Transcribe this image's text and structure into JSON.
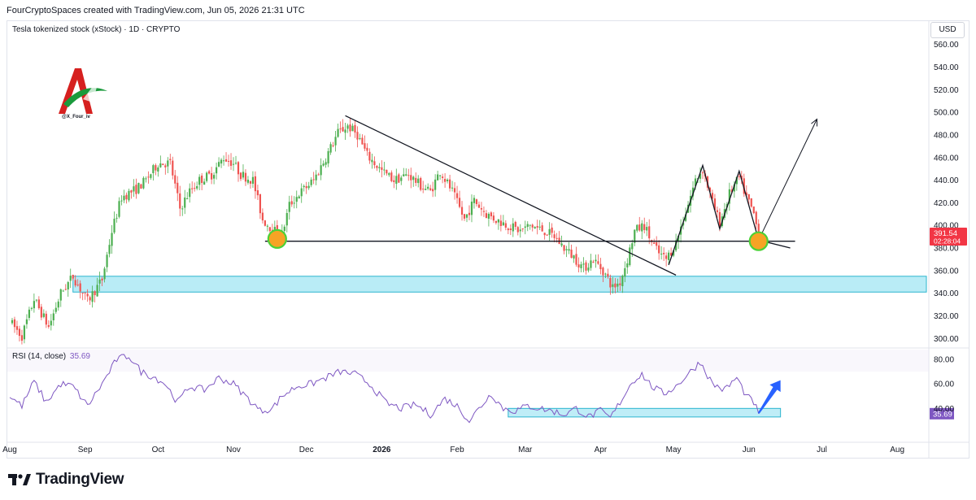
{
  "header": {
    "credit": "FourCryptoSpaces created with TradingView.com, Jun 05, 2026 21:31 UTC",
    "symbol_title": "Tesla tokenized stock (xStock) · 1D · CRYPTO",
    "currency": "USD"
  },
  "logo": {
    "handle": "@X_Four_iv"
  },
  "brand": {
    "name": "TradingView"
  },
  "colors": {
    "up": "#26a69a",
    "up_green": "#4caf50",
    "down": "#ef5350",
    "zone_fill": "#7fdcef",
    "zone_stroke": "#2cb5cf",
    "rsi_line": "#7e57c2",
    "arrow_blue": "#2962ff",
    "circle_orange": "#f7a325",
    "circle_ring": "#4cd137",
    "price_label": "#f23645"
  },
  "chart_data": [
    {
      "type": "candlestick",
      "title": "Tesla tokenized stock (xStock) · 1D · CRYPTO",
      "y_axis": {
        "currency": "USD",
        "ticks": [
          300,
          320,
          340,
          360,
          380,
          400,
          420,
          440,
          460,
          480,
          500,
          520,
          540,
          560
        ],
        "tick_labels": [
          "300.00",
          "320.00",
          "340.00",
          "360.00",
          "380.00",
          "400.00",
          "420.00",
          "440.00",
          "460.00",
          "480.00",
          "500.00",
          "520.00",
          "540.00",
          "560.00"
        ],
        "ylim": [
          293,
          567
        ]
      },
      "x_axis": {
        "ticks": [
          "Aug",
          "Sep",
          "Oct",
          "Nov",
          "Dec",
          "2026",
          "Feb",
          "Mar",
          "Apr",
          "May",
          "Jun",
          "Jul",
          "Aug"
        ],
        "bold_ticks": [
          "2026"
        ]
      },
      "price_anchors": [
        {
          "date": "2025-08-01",
          "price": 315
        },
        {
          "date": "2025-08-06",
          "price": 302
        },
        {
          "date": "2025-08-11",
          "price": 335
        },
        {
          "date": "2025-08-17",
          "price": 310
        },
        {
          "date": "2025-08-22",
          "price": 340
        },
        {
          "date": "2025-08-27",
          "price": 355
        },
        {
          "date": "2025-09-02",
          "price": 333
        },
        {
          "date": "2025-09-08",
          "price": 352
        },
        {
          "date": "2025-09-12",
          "price": 395
        },
        {
          "date": "2025-09-16",
          "price": 425
        },
        {
          "date": "2025-09-22",
          "price": 432
        },
        {
          "date": "2025-09-26",
          "price": 440
        },
        {
          "date": "2025-10-01",
          "price": 455
        },
        {
          "date": "2025-10-06",
          "price": 455
        },
        {
          "date": "2025-10-10",
          "price": 415
        },
        {
          "date": "2025-10-14",
          "price": 430
        },
        {
          "date": "2025-10-18",
          "price": 440
        },
        {
          "date": "2025-10-23",
          "price": 445
        },
        {
          "date": "2025-10-28",
          "price": 460
        },
        {
          "date": "2025-11-01",
          "price": 455
        },
        {
          "date": "2025-11-04",
          "price": 445
        },
        {
          "date": "2025-11-09",
          "price": 440
        },
        {
          "date": "2025-11-13",
          "price": 405
        },
        {
          "date": "2025-11-18",
          "price": 395
        },
        {
          "date": "2025-11-21",
          "price": 392
        },
        {
          "date": "2025-11-24",
          "price": 418
        },
        {
          "date": "2025-11-28",
          "price": 428
        },
        {
          "date": "2025-12-04",
          "price": 440
        },
        {
          "date": "2025-12-09",
          "price": 460
        },
        {
          "date": "2025-12-14",
          "price": 482
        },
        {
          "date": "2025-12-18",
          "price": 488
        },
        {
          "date": "2025-12-22",
          "price": 480
        },
        {
          "date": "2025-12-26",
          "price": 462
        },
        {
          "date": "2026-01-01",
          "price": 448
        },
        {
          "date": "2026-01-06",
          "price": 440
        },
        {
          "date": "2026-01-12",
          "price": 445
        },
        {
          "date": "2026-01-17",
          "price": 435
        },
        {
          "date": "2026-01-21",
          "price": 430
        },
        {
          "date": "2026-01-25",
          "price": 448
        },
        {
          "date": "2026-01-30",
          "price": 430
        },
        {
          "date": "2026-02-04",
          "price": 405
        },
        {
          "date": "2026-02-08",
          "price": 422
        },
        {
          "date": "2026-02-13",
          "price": 410
        },
        {
          "date": "2026-02-17",
          "price": 405
        },
        {
          "date": "2026-02-22",
          "price": 400
        },
        {
          "date": "2026-02-27",
          "price": 395
        },
        {
          "date": "2026-03-03",
          "price": 400
        },
        {
          "date": "2026-03-09",
          "price": 395
        },
        {
          "date": "2026-03-13",
          "price": 390
        },
        {
          "date": "2026-03-17",
          "price": 380
        },
        {
          "date": "2026-03-21",
          "price": 372
        },
        {
          "date": "2026-03-25",
          "price": 362
        },
        {
          "date": "2026-03-29",
          "price": 370
        },
        {
          "date": "2026-04-02",
          "price": 360
        },
        {
          "date": "2026-04-06",
          "price": 345
        },
        {
          "date": "2026-04-09",
          "price": 350
        },
        {
          "date": "2026-04-12",
          "price": 370
        },
        {
          "date": "2026-04-15",
          "price": 395
        },
        {
          "date": "2026-04-19",
          "price": 400
        },
        {
          "date": "2026-04-22",
          "price": 385
        },
        {
          "date": "2026-04-25",
          "price": 375
        },
        {
          "date": "2026-04-28",
          "price": 370
        },
        {
          "date": "2026-05-02",
          "price": 385
        },
        {
          "date": "2026-05-06",
          "price": 412
        },
        {
          "date": "2026-05-10",
          "price": 440
        },
        {
          "date": "2026-05-13",
          "price": 450
        },
        {
          "date": "2026-05-17",
          "price": 420
        },
        {
          "date": "2026-05-20",
          "price": 402
        },
        {
          "date": "2026-05-24",
          "price": 428
        },
        {
          "date": "2026-05-28",
          "price": 442
        },
        {
          "date": "2026-05-31",
          "price": 425
        },
        {
          "date": "2026-06-03",
          "price": 410
        },
        {
          "date": "2026-06-05",
          "price": 391.54
        }
      ],
      "last_price": {
        "value": "391.54",
        "countdown": "02:28:04"
      },
      "annotations": {
        "horizontal_support": {
          "from_date": "2025-11-14",
          "to_date": "2026-06-20",
          "price": 386
        },
        "descending_trendline": {
          "from": {
            "date": "2025-12-17",
            "price": 497
          },
          "to": {
            "date": "2026-05-02",
            "price": 356
          }
        },
        "demand_zone": {
          "from_date": "2025-08-27",
          "to_date": "2026-08-13",
          "low": 341,
          "high": 355
        },
        "zigzag": [
          {
            "date": "2026-04-29",
            "price": 365
          },
          {
            "date": "2026-05-13",
            "price": 453
          },
          {
            "date": "2026-05-20",
            "price": 397
          },
          {
            "date": "2026-05-28",
            "price": 448
          },
          {
            "date": "2026-06-05",
            "price": 387
          },
          {
            "date": "2026-06-18",
            "price": 380
          }
        ],
        "projection_arrow": {
          "from": {
            "date": "2026-06-05",
            "price": 387
          },
          "to": {
            "date": "2026-06-29",
            "price": 494
          }
        },
        "circles": [
          {
            "date": "2025-11-19",
            "price": 388
          },
          {
            "date": "2026-06-05",
            "price": 386
          }
        ]
      }
    },
    {
      "type": "line",
      "title": "RSI (14, close)",
      "current_value": "35.69",
      "y_axis": {
        "ticks": [
          40,
          60,
          80
        ],
        "tick_labels": [
          "40.00",
          "60.00",
          "80.00"
        ],
        "ylim": [
          15,
          88
        ]
      },
      "series": [
        {
          "values": [
            {
              "date": "2025-08-01",
              "rsi": 50
            },
            {
              "date": "2025-08-06",
              "rsi": 42
            },
            {
              "date": "2025-08-11",
              "rsi": 62
            },
            {
              "date": "2025-08-16",
              "rsi": 45
            },
            {
              "date": "2025-08-22",
              "rsi": 60
            },
            {
              "date": "2025-08-27",
              "rsi": 58
            },
            {
              "date": "2025-09-02",
              "rsi": 42
            },
            {
              "date": "2025-09-08",
              "rsi": 60
            },
            {
              "date": "2025-09-14",
              "rsi": 80
            },
            {
              "date": "2025-09-19",
              "rsi": 83
            },
            {
              "date": "2025-09-24",
              "rsi": 70
            },
            {
              "date": "2025-09-30",
              "rsi": 65
            },
            {
              "date": "2025-10-04",
              "rsi": 60
            },
            {
              "date": "2025-10-09",
              "rsi": 45
            },
            {
              "date": "2025-10-14",
              "rsi": 58
            },
            {
              "date": "2025-10-20",
              "rsi": 55
            },
            {
              "date": "2025-10-26",
              "rsi": 65
            },
            {
              "date": "2025-11-01",
              "rsi": 60
            },
            {
              "date": "2025-11-06",
              "rsi": 50
            },
            {
              "date": "2025-11-12",
              "rsi": 38
            },
            {
              "date": "2025-11-17",
              "rsi": 40
            },
            {
              "date": "2025-11-21",
              "rsi": 50
            },
            {
              "date": "2025-11-27",
              "rsi": 58
            },
            {
              "date": "2025-12-03",
              "rsi": 60
            },
            {
              "date": "2025-12-09",
              "rsi": 65
            },
            {
              "date": "2025-12-15",
              "rsi": 70
            },
            {
              "date": "2025-12-21",
              "rsi": 68
            },
            {
              "date": "2025-12-27",
              "rsi": 60
            },
            {
              "date": "2026-01-03",
              "rsi": 44
            },
            {
              "date": "2026-01-09",
              "rsi": 40
            },
            {
              "date": "2026-01-15",
              "rsi": 43
            },
            {
              "date": "2026-01-21",
              "rsi": 35
            },
            {
              "date": "2026-01-27",
              "rsi": 48
            },
            {
              "date": "2026-02-01",
              "rsi": 42
            },
            {
              "date": "2026-02-06",
              "rsi": 30
            },
            {
              "date": "2026-02-10",
              "rsi": 40
            },
            {
              "date": "2026-02-15",
              "rsi": 52
            },
            {
              "date": "2026-02-20",
              "rsi": 40
            },
            {
              "date": "2026-02-25",
              "rsi": 38
            },
            {
              "date": "2026-03-02",
              "rsi": 42
            },
            {
              "date": "2026-03-07",
              "rsi": 40
            },
            {
              "date": "2026-03-12",
              "rsi": 38
            },
            {
              "date": "2026-03-17",
              "rsi": 35
            },
            {
              "date": "2026-03-22",
              "rsi": 40
            },
            {
              "date": "2026-03-27",
              "rsi": 33
            },
            {
              "date": "2026-04-01",
              "rsi": 38
            },
            {
              "date": "2026-04-05",
              "rsi": 32
            },
            {
              "date": "2026-04-09",
              "rsi": 45
            },
            {
              "date": "2026-04-14",
              "rsi": 62
            },
            {
              "date": "2026-04-18",
              "rsi": 68
            },
            {
              "date": "2026-04-22",
              "rsi": 58
            },
            {
              "date": "2026-04-27",
              "rsi": 52
            },
            {
              "date": "2026-05-02",
              "rsi": 58
            },
            {
              "date": "2026-05-07",
              "rsi": 68
            },
            {
              "date": "2026-05-12",
              "rsi": 78
            },
            {
              "date": "2026-05-17",
              "rsi": 60
            },
            {
              "date": "2026-05-22",
              "rsi": 55
            },
            {
              "date": "2026-05-27",
              "rsi": 65
            },
            {
              "date": "2026-05-31",
              "rsi": 50
            },
            {
              "date": "2026-06-03",
              "rsi": 45
            },
            {
              "date": "2026-06-05",
              "rsi": 35.69
            }
          ]
        }
      ],
      "annotations": {
        "oversold_zone": {
          "from_date": "2026-02-22",
          "to_date": "2026-06-14",
          "low": 33,
          "high": 40
        },
        "up_arrow": {
          "from": {
            "date": "2026-06-05",
            "rsi": 36
          },
          "to": {
            "date": "2026-06-14",
            "rsi": 63
          }
        }
      }
    }
  ]
}
